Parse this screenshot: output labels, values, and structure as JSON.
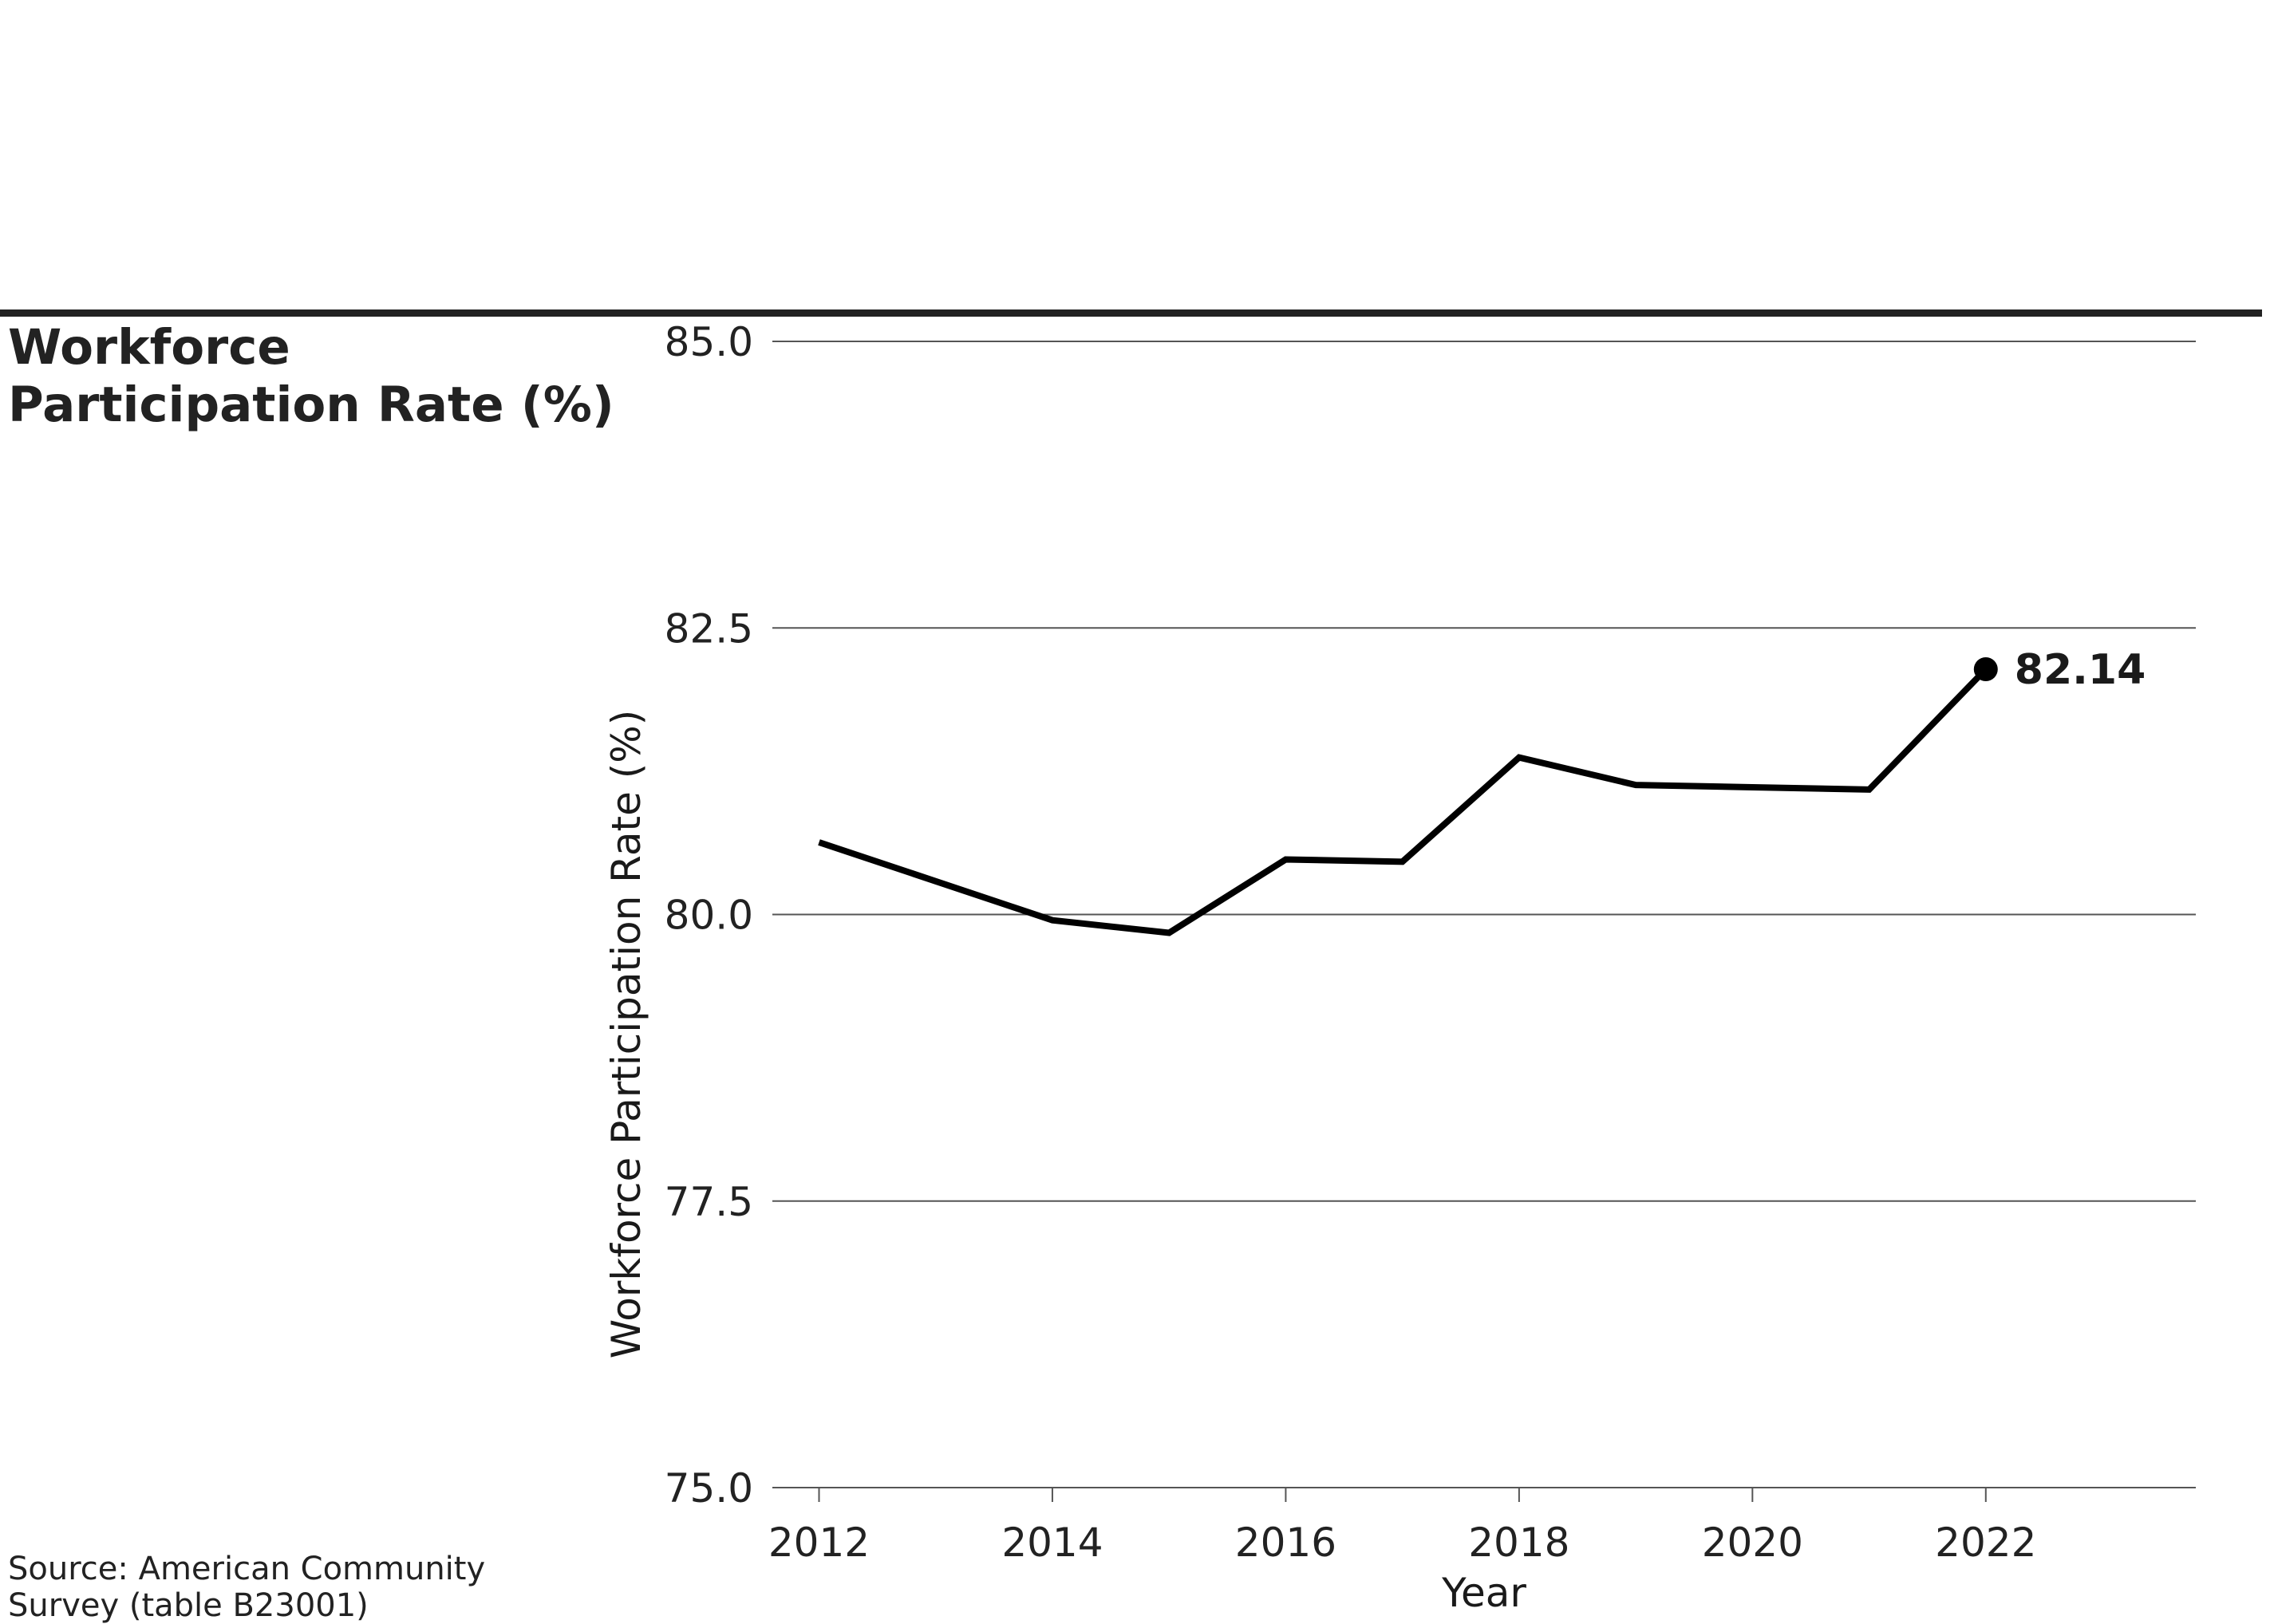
{
  "title": {
    "line1": "Workforce",
    "line2": "Participation Rate (%)"
  },
  "source": {
    "line1": "Source: American Community",
    "line2": "Survey (table B23001)"
  },
  "chart_data": {
    "type": "line",
    "xlabel": "Year",
    "ylabel": "Workforce Participation Rate (%)",
    "ylim": [
      75.0,
      85.0
    ],
    "xlim": [
      2011.6,
      2023.8
    ],
    "yticks": [
      "75.0",
      "77.5",
      "80.0",
      "82.5",
      "85.0"
    ],
    "xticks": [
      "2012",
      "2014",
      "2016",
      "2018",
      "2020",
      "2022"
    ],
    "grid": "horizontal",
    "line_color": "#000000",
    "series": [
      {
        "x": [
          2012,
          2013,
          2014,
          2015,
          2016,
          2017,
          2018,
          2019,
          2020,
          2021,
          2022
        ],
        "values": [
          80.63,
          80.29,
          79.95,
          79.84,
          80.48,
          80.46,
          81.37,
          81.13,
          81.11,
          81.09,
          82.14
        ]
      }
    ],
    "end_label": "82.14"
  }
}
